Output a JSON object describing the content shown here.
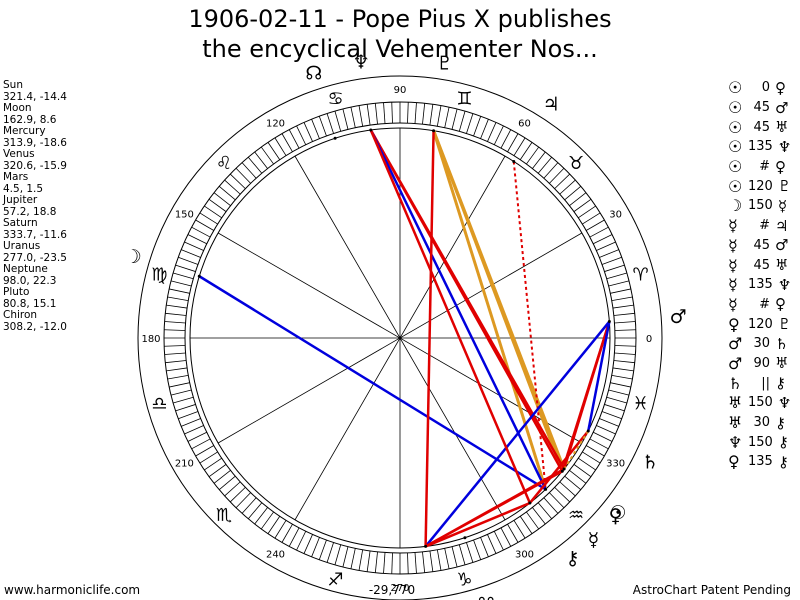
{
  "title_line1": "1906-02-11 - Pope Pius X publishes",
  "title_line2": "the encyclical Vehementer Nos...",
  "planets": [
    {
      "name": "Sun",
      "coords": "321.4, -14.4",
      "lon": 321.4
    },
    {
      "name": "Moon",
      "coords": "162.9, 8.6",
      "lon": 162.9
    },
    {
      "name": "Mercury",
      "coords": "313.9, -18.6",
      "lon": 313.9
    },
    {
      "name": "Venus",
      "coords": "320.6, -15.9",
      "lon": 320.6
    },
    {
      "name": "Mars",
      "coords": "4.5, 1.5",
      "lon": 4.5
    },
    {
      "name": "Jupiter",
      "coords": "57.2, 18.8",
      "lon": 57.2
    },
    {
      "name": "Saturn",
      "coords": "333.7, -11.6",
      "lon": 333.7
    },
    {
      "name": "Uranus",
      "coords": "277.0, -23.5",
      "lon": 277.0
    },
    {
      "name": "Neptune",
      "coords": "98.0, 22.3",
      "lon": 98.0
    },
    {
      "name": "Pluto",
      "coords": "80.8, 15.1",
      "lon": 80.8
    },
    {
      "name": "Chiron",
      "coords": "308.2, -12.0",
      "lon": 308.2
    }
  ],
  "wheel_glyphs": [
    {
      "name": "sun",
      "glyph": "☉",
      "lon": 321.4
    },
    {
      "name": "moon",
      "glyph": "☽",
      "lon": 162.9
    },
    {
      "name": "mercury",
      "glyph": "☿",
      "lon": 313.9
    },
    {
      "name": "venus",
      "glyph": "♀",
      "lon": 320.6
    },
    {
      "name": "mars",
      "glyph": "♂",
      "lon": 4.5
    },
    {
      "name": "jupiter",
      "glyph": "♃",
      "lon": 57.2
    },
    {
      "name": "saturn",
      "glyph": "♄",
      "lon": 333.7
    },
    {
      "name": "uranus",
      "glyph": "♅",
      "lon": 277.0
    },
    {
      "name": "neptune",
      "glyph": "♆",
      "lon": 98.0
    },
    {
      "name": "pluto",
      "glyph": "♇",
      "lon": 80.8
    },
    {
      "name": "chiron",
      "glyph": "⚷",
      "lon": 308.2
    },
    {
      "name": "north-node",
      "glyph": "☊",
      "lon": 108.0
    },
    {
      "name": "south-node",
      "glyph": "☋",
      "lon": 288.0
    }
  ],
  "zodiac_signs": [
    {
      "name": "aries",
      "glyph": "♈"
    },
    {
      "name": "taurus",
      "glyph": "♉"
    },
    {
      "name": "gemini",
      "glyph": "♊"
    },
    {
      "name": "cancer",
      "glyph": "♋"
    },
    {
      "name": "leo",
      "glyph": "♌"
    },
    {
      "name": "virgo",
      "glyph": "♍"
    },
    {
      "name": "libra",
      "glyph": "♎"
    },
    {
      "name": "scorpio",
      "glyph": "♏"
    },
    {
      "name": "sagittarius",
      "glyph": "♐"
    },
    {
      "name": "capricorn",
      "glyph": "♑"
    },
    {
      "name": "aquarius",
      "glyph": "♒"
    },
    {
      "name": "pisces",
      "glyph": "♓"
    }
  ],
  "degree_labels": [
    "0",
    "30",
    "60",
    "90",
    "120",
    "150",
    "180",
    "210",
    "240",
    "270",
    "300",
    "330"
  ],
  "center_value": "-29,770",
  "aspect_lines": [
    {
      "from": "pluto",
      "to": "sun",
      "color": "#dd9922"
    },
    {
      "from": "pluto",
      "to": "venus",
      "color": "#dd9922"
    },
    {
      "from": "pluto",
      "to": "mercury",
      "color": "#dd9922"
    },
    {
      "from": "jupiter",
      "to": "mercury",
      "color": "#e00000",
      "dashed": true
    },
    {
      "from": "neptune",
      "to": "sun",
      "color": "#e00000"
    },
    {
      "from": "neptune",
      "to": "venus",
      "color": "#e00000"
    },
    {
      "from": "neptune",
      "to": "mercury",
      "color": "#0000dd"
    },
    {
      "from": "moon",
      "to": "mercury",
      "color": "#0000dd"
    },
    {
      "from": "mars",
      "to": "venus",
      "color": "#e00000"
    },
    {
      "from": "mars",
      "to": "sun",
      "color": "#e00000"
    },
    {
      "from": "mars",
      "to": "uranus",
      "color": "#0000dd"
    },
    {
      "from": "mars",
      "to": "saturn",
      "color": "#0000dd"
    },
    {
      "from": "uranus",
      "to": "sun",
      "color": "#e00000"
    },
    {
      "from": "uranus",
      "to": "venus",
      "color": "#e00000"
    },
    {
      "from": "uranus",
      "to": "chiron",
      "color": "#e00000"
    },
    {
      "from": "pluto",
      "to": "uranus",
      "color": "#e00000"
    },
    {
      "from": "saturn",
      "to": "chiron",
      "color": "#e00000"
    },
    {
      "from": "neptune",
      "to": "chiron",
      "color": "#e00000"
    },
    {
      "from": "saturn",
      "to": "sun",
      "color": "#dd9922",
      "dashed": true
    }
  ],
  "aspects": [
    {
      "p1": "☉",
      "angle": "0",
      "p2": "♀"
    },
    {
      "p1": "☉",
      "angle": "45",
      "p2": "♂"
    },
    {
      "p1": "☉",
      "angle": "45",
      "p2": "♅"
    },
    {
      "p1": "☉",
      "angle": "135",
      "p2": "♆"
    },
    {
      "p1": "☉",
      "angle": "#",
      "p2": "♀"
    },
    {
      "p1": "☉",
      "angle": "120",
      "p2": "♇"
    },
    {
      "p1": "☽",
      "angle": "150",
      "p2": "☿"
    },
    {
      "p1": "☿",
      "angle": "#",
      "p2": "♃"
    },
    {
      "p1": "☿",
      "angle": "45",
      "p2": "♂"
    },
    {
      "p1": "☿",
      "angle": "45",
      "p2": "♅"
    },
    {
      "p1": "☿",
      "angle": "135",
      "p2": "♆"
    },
    {
      "p1": "☿",
      "angle": "#",
      "p2": "♀"
    },
    {
      "p1": "♀",
      "angle": "120",
      "p2": "♇"
    },
    {
      "p1": "♂",
      "angle": "30",
      "p2": "♄"
    },
    {
      "p1": "♂",
      "angle": "90",
      "p2": "♅"
    },
    {
      "p1": "♄",
      "angle": "||",
      "p2": "⚷"
    },
    {
      "p1": "♅",
      "angle": "150",
      "p2": "♆"
    },
    {
      "p1": "♅",
      "angle": "30",
      "p2": "⚷"
    },
    {
      "p1": "♆",
      "angle": "150",
      "p2": "⚷"
    },
    {
      "p1": "♀",
      "angle": "135",
      "p2": "⚷"
    }
  ],
  "footer_left": "www.harmoniclife.com",
  "footer_right": "AstroChart Patent Pending"
}
